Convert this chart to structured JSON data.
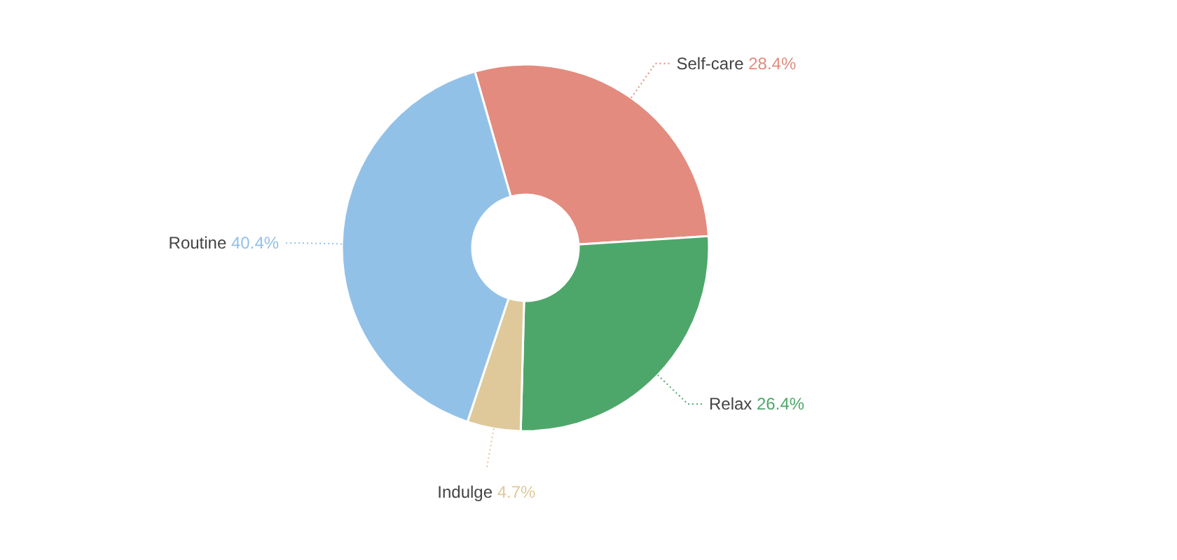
{
  "chart_data": {
    "type": "donut",
    "categories": [
      "Self-care",
      "Relax",
      "Indulge",
      "Routine"
    ],
    "values": [
      28.4,
      26.4,
      4.7,
      40.4
    ],
    "colors": [
      "#e38b7e",
      "#4ea76a",
      "#dfc99a",
      "#92c1e8"
    ],
    "value_labels": [
      "28.4%",
      "26.4%",
      "4.7%",
      "40.4%"
    ]
  }
}
